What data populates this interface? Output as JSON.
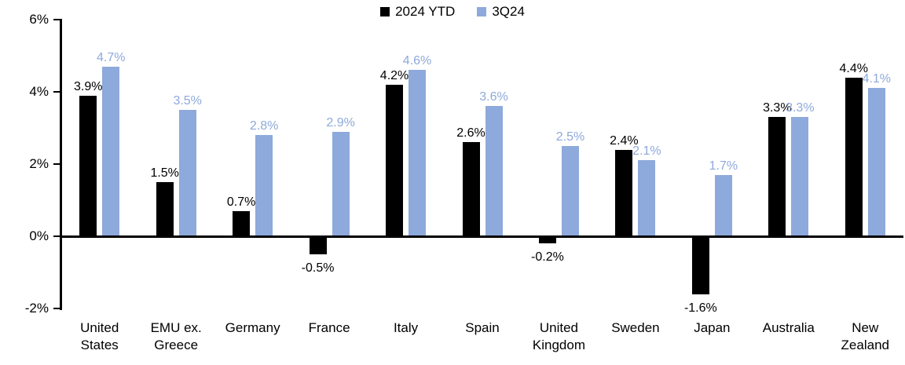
{
  "chart_data": {
    "type": "bar",
    "title": "",
    "categories": [
      "United States",
      "EMU ex. Greece",
      "Germany",
      "France",
      "Italy",
      "Spain",
      "United Kingdom",
      "Sweden",
      "Japan",
      "Australia",
      "New Zealand"
    ],
    "series": [
      {
        "name": "2024 YTD",
        "color": "#000000",
        "values": [
          3.9,
          1.5,
          0.7,
          -0.5,
          4.2,
          2.6,
          -0.2,
          2.4,
          -1.6,
          3.3,
          4.4
        ]
      },
      {
        "name": "3Q24",
        "color": "#8EA9DB",
        "values": [
          4.7,
          3.5,
          2.8,
          2.9,
          4.6,
          3.6,
          2.5,
          2.1,
          1.7,
          3.3,
          4.1
        ]
      }
    ],
    "data_labels": {
      "format": "one_decimal_percent",
      "suffix": "%"
    },
    "xlabel": "",
    "ylabel": "",
    "ylim": [
      -2,
      6
    ],
    "yticks": [
      "6%",
      "4%",
      "2%",
      "0%",
      "-2%"
    ],
    "ytick_values": [
      6,
      4,
      2,
      0,
      -2
    ],
    "grid": false,
    "legend_position": "top-center",
    "colors": {
      "axis": "#000000",
      "background": "#ffffff",
      "series_2024_ytd": "#000000",
      "series_3q24": "#8EA9DB"
    }
  },
  "legend": {
    "items": [
      {
        "label": "2024 YTD",
        "color": "#000000"
      },
      {
        "label": "3Q24",
        "color": "#8EA9DB"
      }
    ]
  }
}
